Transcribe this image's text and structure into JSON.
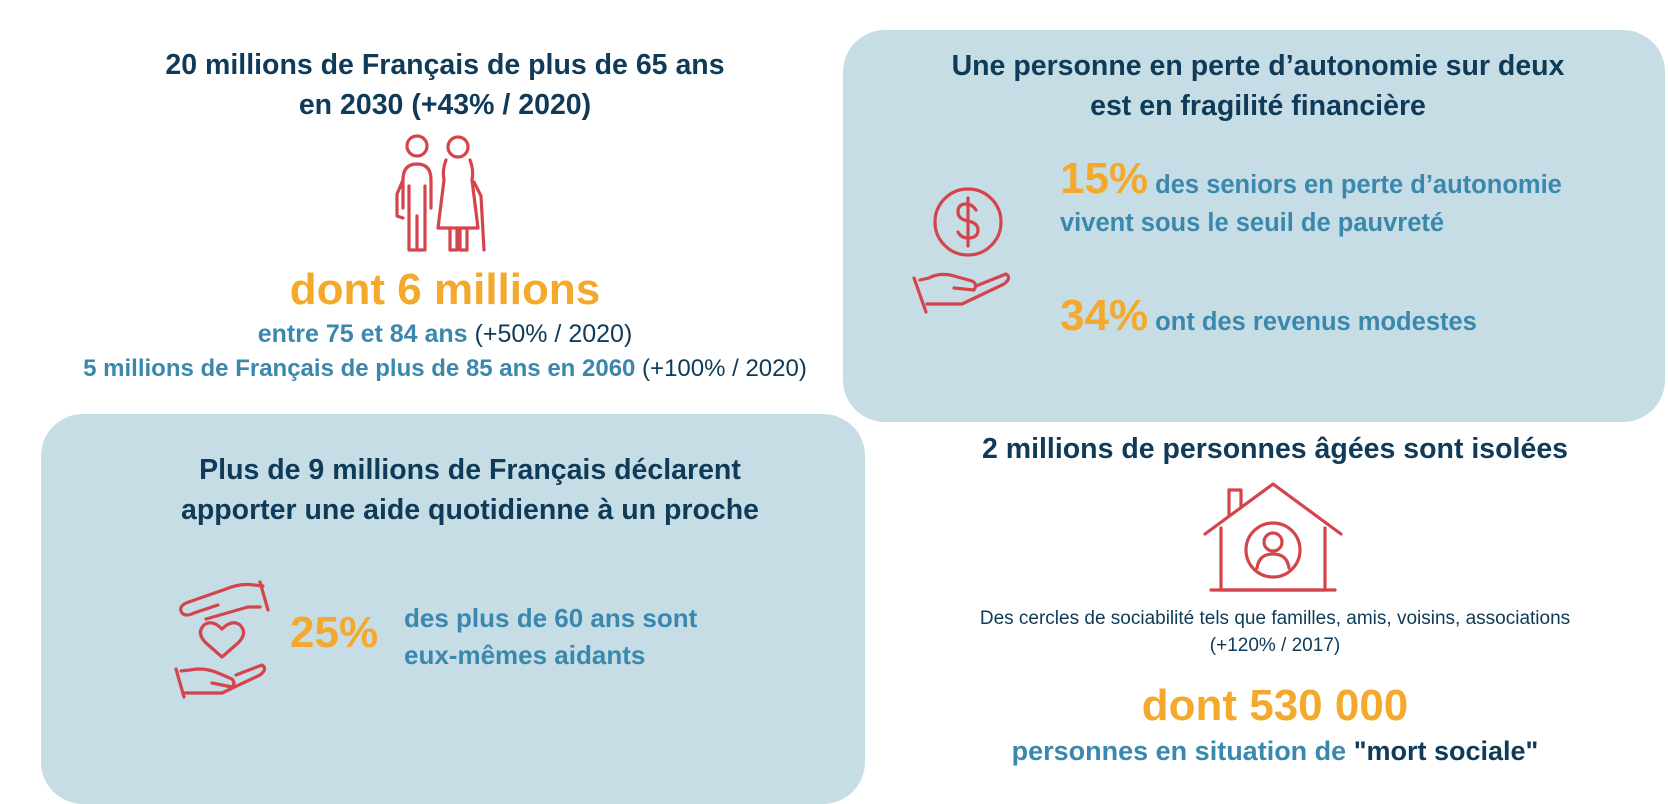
{
  "colors": {
    "navy": "#0f3a58",
    "accent": "#f4a92d",
    "blue": "#3a88ad",
    "panel": "#c6dde6",
    "icon_red": "#d4444b"
  },
  "top_left": {
    "title_line1": "20 millions de Français de plus de 65 ans",
    "title_line2": "en 2030 (+43% / 2020)",
    "icon": "elderly-couple-icon",
    "big": "dont 6 millions",
    "line1_bold": "entre 75 et 84 ans",
    "line1_rest": " (+50% / 2020)",
    "line2_bold": "5 millions de Français de plus de 85 ans en 2060",
    "line2_rest": " (+100% / 2020)"
  },
  "top_right": {
    "title_line1": "Une personne en perte d’autonomie sur deux",
    "title_line2": "est en fragilité financière",
    "icon": "hand-coin-dollar-icon",
    "stat1_value": "15%",
    "stat1_text_a": " des seniors en perte d’autonomie",
    "stat1_text_b": "vivent sous le seuil de pauvreté",
    "stat2_value": "34%",
    "stat2_text": " ont des revenus modestes"
  },
  "bottom_left": {
    "title_line1": "Plus de 9 millions de Français déclarent",
    "title_line2": "apporter une aide quotidienne à un proche",
    "icon": "hands-heart-icon",
    "stat_value": "25%",
    "stat_text_a": "des plus de 60 ans sont",
    "stat_text_b": "eux-mêmes aidants"
  },
  "bottom_right": {
    "title": "2 millions de personnes âgées sont isolées",
    "icon": "house-person-icon",
    "desc_line1": "Des cercles de sociabilité tels que familles, amis, voisins, associations",
    "desc_line2": "(+120% / 2017)",
    "big": "dont 530 000",
    "last_blue": "personnes en situation de ",
    "last_quote": "\"mort sociale\""
  }
}
